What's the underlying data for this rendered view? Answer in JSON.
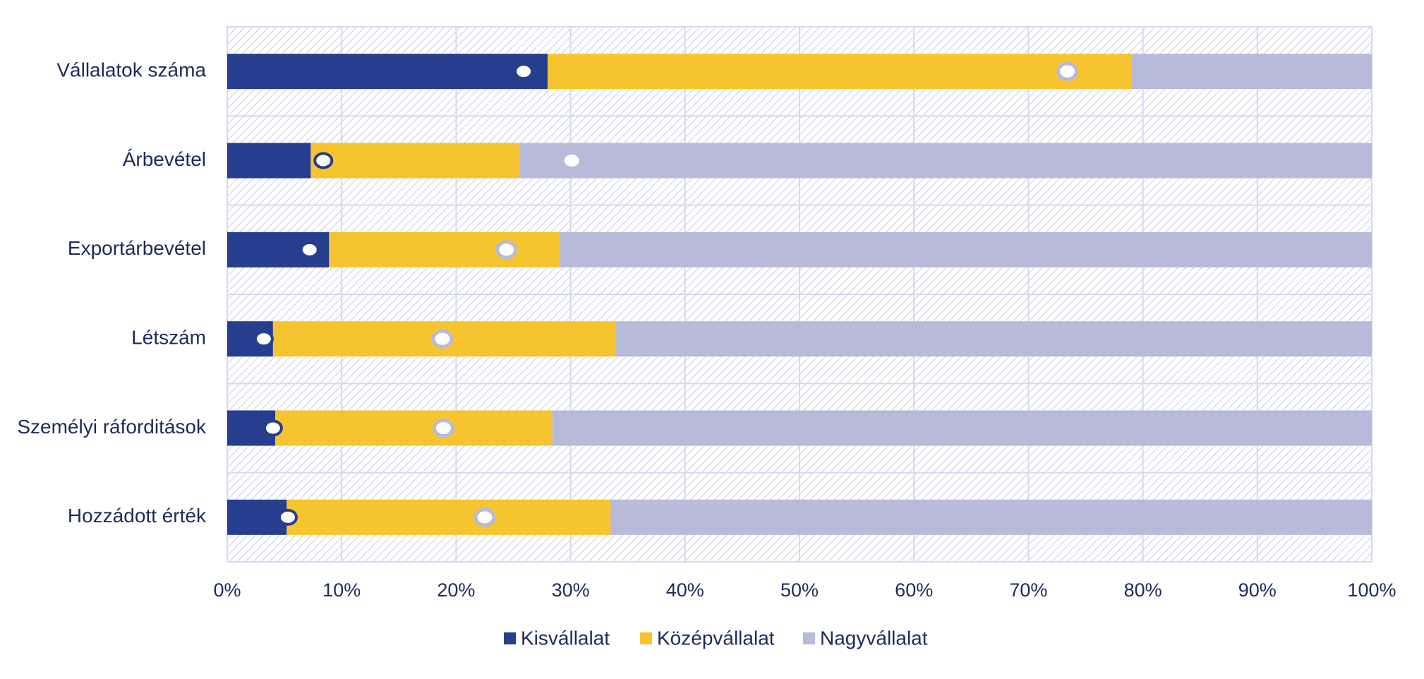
{
  "chart_data": {
    "type": "bar",
    "orientation": "horizontal",
    "stacked": true,
    "categories": [
      "Vállalatok száma",
      "Árbevétel",
      "Exportárbevétel",
      "Létszám",
      "Személyi ráforditások",
      "Hozzádott érték"
    ],
    "series": [
      {
        "name": "Kisvállalat",
        "color": "#253f8e",
        "values": [
          28.0,
          7.3,
          8.9,
          4.0,
          4.2,
          5.2
        ]
      },
      {
        "name": "Középvállalat",
        "color": "#f6c42e",
        "values": [
          51.0,
          18.2,
          20.1,
          29.9,
          24.2,
          28.3
        ]
      },
      {
        "name": "Nagyvállalat",
        "color": "#b8bada",
        "values": [
          21.0,
          74.5,
          71.0,
          66.1,
          71.6,
          66.5
        ]
      }
    ],
    "markers": [
      {
        "series": "Kisvállalat",
        "style": "filled",
        "values": [
          25.9,
          8.4,
          7.2,
          3.2,
          4.0,
          5.3
        ]
      },
      {
        "series": "Középvállalat",
        "style": "hollow",
        "values": [
          73.4,
          30.1,
          24.4,
          18.8,
          18.9,
          22.5
        ]
      }
    ],
    "x_ticks": [
      "0%",
      "10%",
      "20%",
      "30%",
      "40%",
      "50%",
      "60%",
      "70%",
      "80%",
      "90%",
      "100%"
    ],
    "xlim": [
      0,
      100
    ],
    "grid": true,
    "legend_position": "bottom",
    "title": "",
    "xlabel": "",
    "ylabel": ""
  }
}
